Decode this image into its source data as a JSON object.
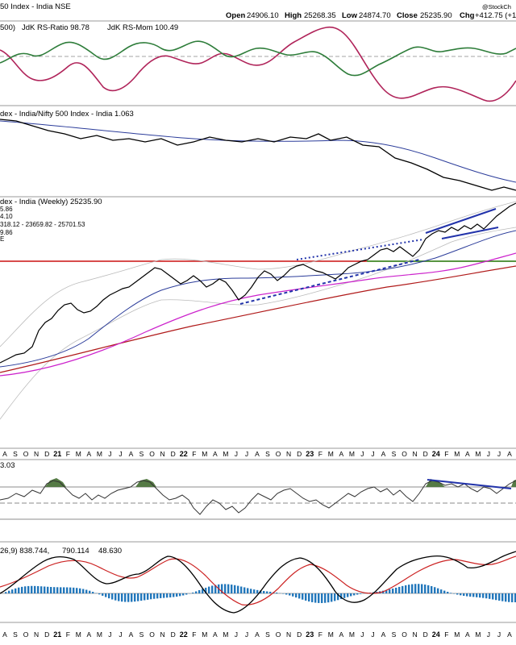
{
  "header": {
    "title": "50 Index - India  NSE",
    "open_label": "Open",
    "open_value": "24906.10",
    "high_label": "High",
    "high_value": "25268.35",
    "low_label": "Low",
    "low_value": "24874.70",
    "close_label": "Close",
    "close_value": "25235.90",
    "chg_label": "Chg",
    "chg_value": "+412.75 (+1",
    "watermark": "@StockCh"
  },
  "panels": {
    "rrg": {
      "legend_prefix": "500)",
      "ratio_label": "JdK RS-Ratio 98.78",
      "mom_label": "JdK RS-Mom 100.49",
      "ratio_color": "#b0245a",
      "mom_color": "#2e7d3a"
    },
    "relative": {
      "legend": "dex - India/Nifty 500 Index - India 1.063"
    },
    "price": {
      "legend": "dex - India (Weekly) 25235.90",
      "ma_labels": [
        "5.86",
        "4.10",
        "318.12 - 23659.82 - 25701.53",
        "9.86"
      ],
      "ma_colors": [
        "#2b3c9a",
        "#b01a1a",
        "#888888",
        "#cc22cc"
      ],
      "stub_label": "E"
    },
    "rsi": {
      "legend": "3.03"
    },
    "macd": {
      "legend_prefix": "26,9) 838.744,",
      "signal_value": "790.114",
      "hist_value": "48.630",
      "signal_color": "#cc2222",
      "hist_color": "#2277bb"
    }
  },
  "axis_labels": [
    "A",
    "S",
    "O",
    "N",
    "D",
    "21",
    "F",
    "M",
    "A",
    "M",
    "J",
    "J",
    "A",
    "S",
    "O",
    "N",
    "D",
    "22",
    "F",
    "M",
    "A",
    "M",
    "J",
    "J",
    "A",
    "S",
    "O",
    "N",
    "D",
    "23",
    "F",
    "M",
    "A",
    "M",
    "J",
    "J",
    "A",
    "S",
    "O",
    "N",
    "D",
    "24",
    "F",
    "M",
    "A",
    "M",
    "J",
    "J",
    "A"
  ],
  "year_labels": [
    "21",
    "22",
    "23",
    "24"
  ],
  "chart_data": {
    "type": "line",
    "title": "50 Index - India  NSE",
    "x": [
      "A",
      "S",
      "O",
      "N",
      "D",
      "21",
      "F",
      "M",
      "A",
      "M",
      "J",
      "J",
      "A",
      "S",
      "O",
      "N",
      "D",
      "22",
      "F",
      "M",
      "A",
      "M",
      "J",
      "J",
      "A",
      "S",
      "O",
      "N",
      "D",
      "23",
      "F",
      "M",
      "A",
      "M",
      "J",
      "J",
      "A",
      "S",
      "O",
      "N",
      "D",
      "24",
      "F",
      "M",
      "A",
      "M",
      "J",
      "J",
      "A"
    ],
    "series": [
      {
        "name": "JdK RS-Ratio 98.78"
      },
      {
        "name": "JdK RS-Mom 100.49"
      },
      {
        "name": "Nifty 500 Index - India 1.063"
      },
      {
        "name": "India (Weekly) 25235.90",
        "last": 25235.9
      },
      {
        "name": "838.744"
      },
      {
        "name": "790.114"
      },
      {
        "name": "48.630"
      }
    ],
    "ohlc_last": {
      "open": 24906.1,
      "high": 25268.35,
      "low": 24874.7,
      "close": 25235.9,
      "change": 412.75
    },
    "xlabel": "",
    "ylabel": "",
    "grid": false,
    "legend": "top-left"
  }
}
